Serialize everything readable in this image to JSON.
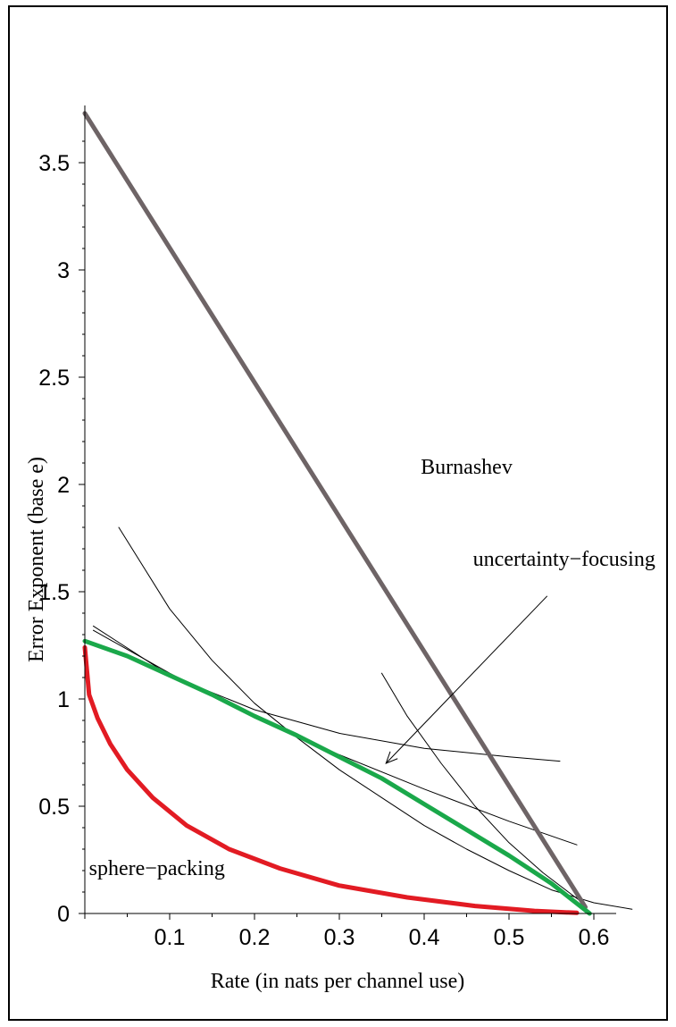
{
  "chart_data": {
    "type": "line",
    "title": "",
    "xlabel": "Rate (in nats per channel use)",
    "ylabel": "Error Exponent (base e)",
    "xlim": [
      0,
      0.6
    ],
    "ylim": [
      0,
      3.8
    ],
    "x_ticks": [
      "0.1",
      "0.2",
      "0.3",
      "0.4",
      "0.5",
      "0.6"
    ],
    "y_ticks": [
      "0",
      "0.5",
      "1",
      "1.5",
      "2",
      "2.5",
      "3",
      "3.5"
    ],
    "grid": false,
    "legend": "none",
    "annotations": [
      {
        "label": "Burnashev",
        "x": 0.45,
        "y": 2.05
      },
      {
        "label": "uncertainty−focusing",
        "x": 0.565,
        "y": 1.62
      },
      {
        "label": "sphere−packing",
        "x": 0.085,
        "y": 0.18
      }
    ],
    "arrow": {
      "from": [
        0.545,
        1.48
      ],
      "to": [
        0.355,
        0.7
      ]
    },
    "series": [
      {
        "color": "#6e6466",
        "width": 5,
        "points": [
          [
            0,
            3.73
          ],
          [
            0.59,
            0.03
          ]
        ]
      },
      {
        "color": "#1aa84a",
        "width": 5,
        "points": [
          [
            0,
            1.27
          ],
          [
            0.05,
            1.2
          ],
          [
            0.1,
            1.11
          ],
          [
            0.15,
            1.02
          ],
          [
            0.2,
            0.92
          ],
          [
            0.25,
            0.83
          ],
          [
            0.3,
            0.73
          ],
          [
            0.35,
            0.63
          ],
          [
            0.4,
            0.51
          ],
          [
            0.45,
            0.39
          ],
          [
            0.5,
            0.27
          ],
          [
            0.55,
            0.14
          ],
          [
            0.595,
            0.0
          ]
        ]
      },
      {
        "color": "#e21b23",
        "width": 5,
        "points": [
          [
            0.0,
            1.24
          ],
          [
            0.005,
            1.02
          ],
          [
            0.015,
            0.91
          ],
          [
            0.03,
            0.79
          ],
          [
            0.05,
            0.67
          ],
          [
            0.08,
            0.54
          ],
          [
            0.12,
            0.41
          ],
          [
            0.17,
            0.3
          ],
          [
            0.23,
            0.21
          ],
          [
            0.3,
            0.13
          ],
          [
            0.38,
            0.075
          ],
          [
            0.46,
            0.035
          ],
          [
            0.53,
            0.012
          ],
          [
            0.58,
            0.003
          ]
        ]
      },
      {
        "color": "#000000",
        "width": 1,
        "points": [
          [
            0.01,
            1.34
          ],
          [
            0.1,
            1.11
          ],
          [
            0.2,
            0.95
          ],
          [
            0.3,
            0.84
          ],
          [
            0.4,
            0.77
          ],
          [
            0.5,
            0.73
          ],
          [
            0.56,
            0.71
          ]
        ]
      },
      {
        "color": "#000000",
        "width": 1,
        "points": [
          [
            0.04,
            1.8
          ],
          [
            0.1,
            1.42
          ],
          [
            0.15,
            1.18
          ],
          [
            0.2,
            0.98
          ],
          [
            0.25,
            0.82
          ],
          [
            0.3,
            0.67
          ],
          [
            0.35,
            0.54
          ],
          [
            0.4,
            0.41
          ],
          [
            0.45,
            0.3
          ],
          [
            0.5,
            0.2
          ],
          [
            0.55,
            0.11
          ],
          [
            0.6,
            0.05
          ],
          [
            0.645,
            0.02
          ]
        ]
      },
      {
        "color": "#000000",
        "width": 1,
        "points": [
          [
            0.01,
            1.32
          ],
          [
            0.1,
            1.12
          ],
          [
            0.2,
            0.92
          ],
          [
            0.3,
            0.74
          ],
          [
            0.4,
            0.58
          ],
          [
            0.5,
            0.43
          ],
          [
            0.58,
            0.32
          ]
        ]
      },
      {
        "color": "#000000",
        "width": 1,
        "points": [
          [
            0.35,
            1.12
          ],
          [
            0.38,
            0.92
          ],
          [
            0.42,
            0.7
          ],
          [
            0.46,
            0.5
          ],
          [
            0.5,
            0.33
          ],
          [
            0.54,
            0.19
          ],
          [
            0.57,
            0.1
          ],
          [
            0.59,
            0.04
          ]
        ]
      }
    ]
  }
}
